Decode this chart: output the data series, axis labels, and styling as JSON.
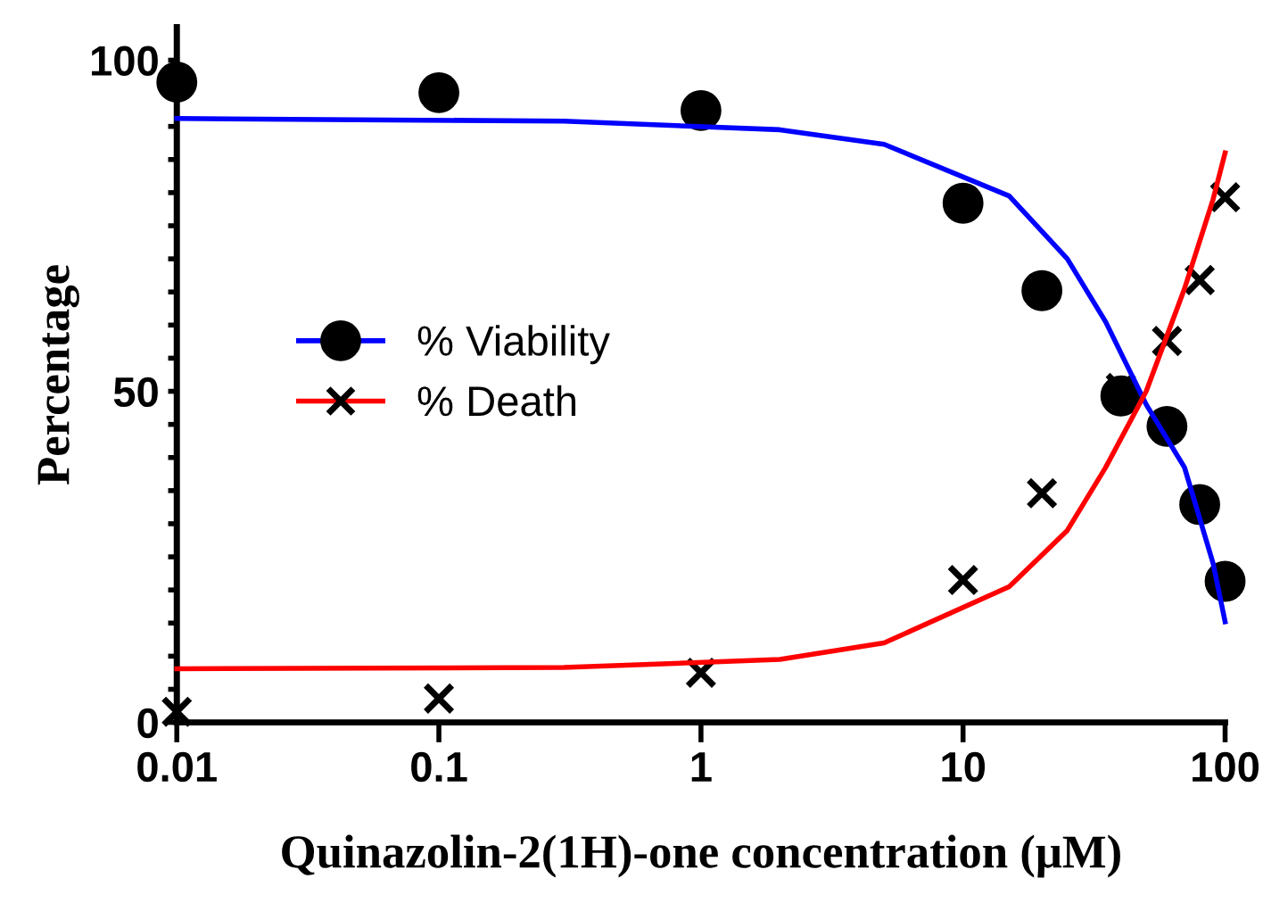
{
  "chart_data": {
    "type": "scatter",
    "xlabel": "Quinazolin-2(1H)-one concentration (μM)",
    "ylabel": "Percentage",
    "log": "x",
    "xlim": [
      0.01,
      100
    ],
    "xticks": [
      0.01,
      0.1,
      1,
      10,
      100
    ],
    "ylim": [
      0,
      105
    ],
    "yticks": [
      0,
      {
        "value": 5,
        "label": null
      },
      {
        "value": 10,
        "label": null
      },
      {
        "value": 15,
        "label": null
      },
      {
        "value": 20,
        "label": null
      },
      {
        "value": 25,
        "label": null
      },
      {
        "value": 30,
        "label": null
      },
      {
        "value": 35,
        "label": null
      },
      {
        "value": 40,
        "label": null
      },
      {
        "value": 45,
        "label": null
      },
      50,
      {
        "value": 55,
        "label": null
      },
      {
        "value": 60,
        "label": null
      },
      {
        "value": 65,
        "label": null
      },
      {
        "value": 70,
        "label": null
      },
      {
        "value": 75,
        "label": null
      },
      {
        "value": 80,
        "label": null
      },
      {
        "value": 85,
        "label": null
      },
      {
        "value": 90,
        "label": null
      },
      {
        "value": 95,
        "label": null
      },
      100
    ],
    "grid": false,
    "legend": "center left",
    "series": [
      {
        "type": "line",
        "color": "#0000ff",
        "marker": "none",
        "x": [
          0.01,
          0.3,
          2,
          5,
          15,
          25,
          35,
          50,
          70,
          90,
          100
        ],
        "values": [
          91.2,
          90.8,
          89.5,
          87.3,
          79.5,
          70.0,
          60.5,
          48.0,
          38.5,
          24.0,
          15.2
        ]
      },
      {
        "type": "line",
        "color": "#ff0000",
        "marker": "none",
        "x": [
          0.01,
          0.3,
          2,
          5,
          15,
          25,
          35,
          50,
          70,
          90,
          100
        ],
        "values": [
          8.1,
          8.3,
          9.5,
          12.0,
          20.5,
          29.0,
          38.5,
          50.0,
          65.5,
          79.0,
          86.0
        ]
      },
      {
        "name": "% Viability",
        "color": "#000000",
        "marker": "circle",
        "x": [
          0.01,
          0.1,
          1,
          10,
          20,
          40,
          60,
          80,
          100
        ],
        "values": [
          96.7,
          95.1,
          92.4,
          78.4,
          65.2,
          49.3,
          44.7,
          32.9,
          21.3
        ]
      },
      {
        "name": "% Death",
        "color": "#000000",
        "marker": "cross",
        "x": [
          0.01,
          0.1,
          1,
          10,
          20,
          40,
          60,
          80,
          100
        ],
        "values": [
          1.6,
          3.6,
          7.5,
          21.5,
          34.6,
          50.5,
          57.6,
          66.8,
          79.3
        ]
      }
    ]
  }
}
